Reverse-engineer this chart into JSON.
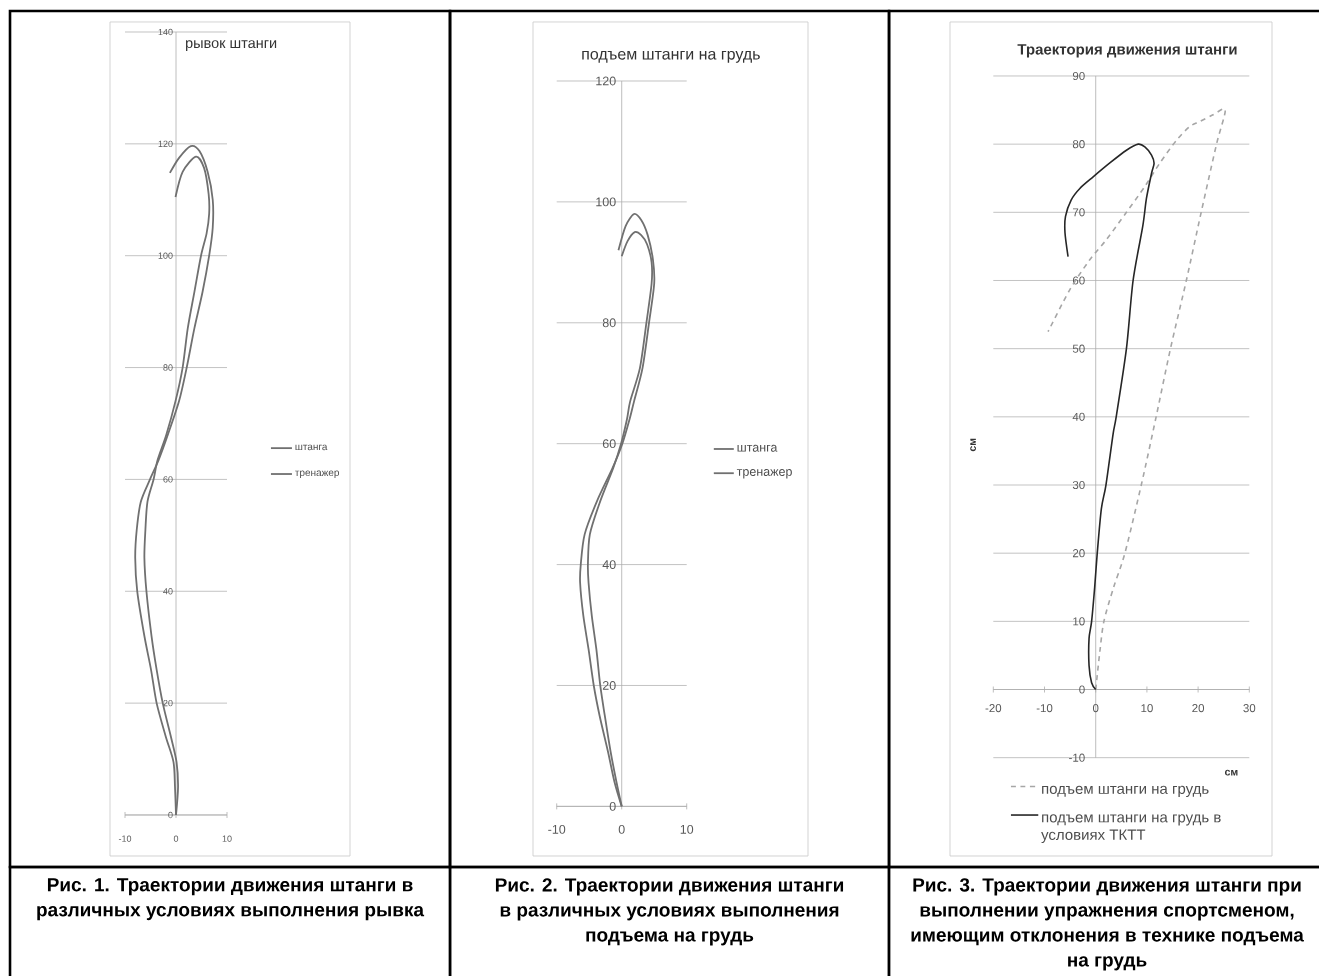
{
  "chart_data": [
    {
      "type": "line",
      "title": "рывок штанги",
      "series": [
        {
          "name": "штанга",
          "color": "#707070",
          "x": [
            0,
            -0.2,
            -0.5,
            -2.0,
            -3.8,
            -4.9,
            -6.2,
            -7.6,
            -8.0,
            -7.7,
            -6.9,
            -5.1,
            -3.4,
            -1.6,
            0.6,
            2.1,
            3.6,
            5.2,
            6.5,
            7.2,
            7.2,
            6.2,
            4.6,
            2.9,
            0.6,
            -1.2
          ],
          "values": [
            0,
            5,
            9.5,
            14,
            20,
            26,
            32,
            40,
            46,
            51,
            56,
            60,
            63.5,
            68,
            74,
            80,
            87,
            93.5,
            100,
            105,
            110,
            115,
            118.7,
            119.6,
            117.5,
            114.8
          ]
        },
        {
          "name": "тренажер",
          "color": "#707070",
          "x": [
            0,
            0.4,
            0.1,
            -1.0,
            -2.6,
            -3.8,
            -4.8,
            -5.8,
            -6.2,
            -6.0,
            -5.6,
            -4.4,
            -3.6,
            -1.9,
            -0.1,
            1.3,
            2.3,
            3.6,
            4.9,
            6.0,
            6.5,
            6.4,
            5.5,
            3.9,
            1.3,
            -0.1
          ],
          "values": [
            0,
            5,
            9.5,
            14,
            20,
            26,
            32,
            40,
            46,
            51,
            56,
            60,
            63.5,
            68,
            74,
            80,
            87,
            93.5,
            100,
            104,
            107.5,
            111,
            115.7,
            117.7,
            115,
            110.5
          ]
        }
      ],
      "xlim": [
        -10,
        10
      ],
      "ylim": [
        0,
        140
      ],
      "xticks": [
        -10,
        0,
        10
      ],
      "yticks": [
        0,
        20,
        40,
        60,
        80,
        100,
        120,
        140
      ],
      "grid": "y",
      "legend": "right",
      "annotations": [
        "Рис. 1. Траектории движения штанги в различных условиях выполнения рывка"
      ]
    },
    {
      "type": "line",
      "title": "подъем штанги на грудь",
      "series": [
        {
          "name": "штанга",
          "color": "#707070",
          "x": [
            0,
            -1.1,
            -2.1,
            -3.4,
            -4.3,
            -5.1,
            -5.9,
            -6.4,
            -6.3,
            -5.7,
            -3.8,
            -1.4,
            0.1,
            1.2,
            1.9,
            3.2,
            4.2,
            5.0,
            4.8,
            4.0,
            3.0,
            1.9,
            0.6,
            -0.5
          ],
          "values": [
            0,
            4,
            9,
            15,
            20,
            26,
            31.5,
            37,
            40,
            45,
            50.5,
            56,
            60,
            64,
            67,
            72.5,
            80,
            86.5,
            90.5,
            94.5,
            97,
            98,
            96,
            92
          ]
        },
        {
          "name": "тренажер",
          "color": "#707070",
          "x": [
            0,
            -0.8,
            -1.7,
            -2.6,
            -3.3,
            -3.9,
            -4.6,
            -5.1,
            -5.2,
            -4.9,
            -3.3,
            -1.3,
            -0.1,
            0.8,
            1.3,
            2.8,
            3.8,
            4.6,
            4.6,
            3.9,
            3.0,
            2.0,
            0.9,
            0
          ],
          "values": [
            0,
            4,
            9,
            15,
            20,
            26,
            31.5,
            37,
            40,
            45,
            50.5,
            56,
            60,
            64,
            67,
            72.5,
            80,
            86.5,
            90,
            93,
            94.5,
            95,
            93.5,
            91
          ]
        }
      ],
      "xlim": [
        -10,
        10
      ],
      "ylim": [
        0,
        120
      ],
      "xticks": [
        -10,
        0,
        10
      ],
      "yticks": [
        0,
        20,
        40,
        60,
        80,
        100,
        120
      ],
      "grid": "y",
      "legend": "right",
      "annotations": [
        "Рис. 2. Траектории движения штанги в различных условиях выполнения подъема на грудь"
      ]
    },
    {
      "type": "line",
      "title": "Траектория движения штанги",
      "xlabel": "см",
      "ylabel": "см",
      "series": [
        {
          "name": "подъем штанги на грудь",
          "color": "#a6a6a6",
          "line_style": "dashed",
          "x": [
            0,
            0.8,
            1.6,
            3.5,
            5.7,
            8.9,
            11.8,
            14.6,
            17.7,
            20.6,
            23.6,
            25.3,
            22.9,
            20.3,
            18.4,
            15.8,
            12.5,
            9.6,
            6.0,
            2.1,
            -1.2,
            -5.1,
            -9.3
          ],
          "values": [
            0,
            5.5,
            10,
            15,
            20,
            30,
            40,
            50,
            60,
            70,
            80,
            85,
            84.3,
            83.3,
            82.6,
            80.6,
            77.2,
            73.8,
            70,
            66,
            63,
            58.6,
            52.5
          ]
        },
        {
          "name": "подъем штанги на грудь в условиях ТКТТ",
          "color": "#262626",
          "line_style": "solid",
          "x": [
            0,
            -0.8,
            -1.3,
            -1.3,
            -0.8,
            -0.2,
            0.3,
            1.1,
            2.0,
            3.4,
            4.0,
            6.0,
            7.3,
            9.2,
            9.9,
            10.9,
            11.4,
            10.9,
            9.6,
            8.3,
            6.0,
            2.7,
            -0.5,
            -3.1,
            -4.8,
            -5.9,
            -6.0,
            -5.4
          ],
          "values": [
            0,
            1,
            3.5,
            7.5,
            10,
            15,
            20,
            26.5,
            30,
            37.5,
            40,
            50,
            60,
            68,
            72,
            75.7,
            77.2,
            78.4,
            79.6,
            80,
            79.1,
            77.2,
            75.2,
            73.5,
            71.8,
            69.4,
            67,
            63.5
          ]
        }
      ],
      "xlim": [
        -20,
        30
      ],
      "ylim": [
        -10,
        90
      ],
      "xticks": [
        -20,
        -10,
        0,
        10,
        20,
        30
      ],
      "yticks": [
        -10,
        0,
        10,
        20,
        30,
        40,
        50,
        60,
        70,
        80,
        90
      ],
      "grid": "y",
      "legend": "bottom",
      "annotations": [
        "Рис. 3. Траектории движения штанги при выполнении упражнения спортсменом, имеющим отклонения в технике подъема на грудь"
      ]
    }
  ]
}
